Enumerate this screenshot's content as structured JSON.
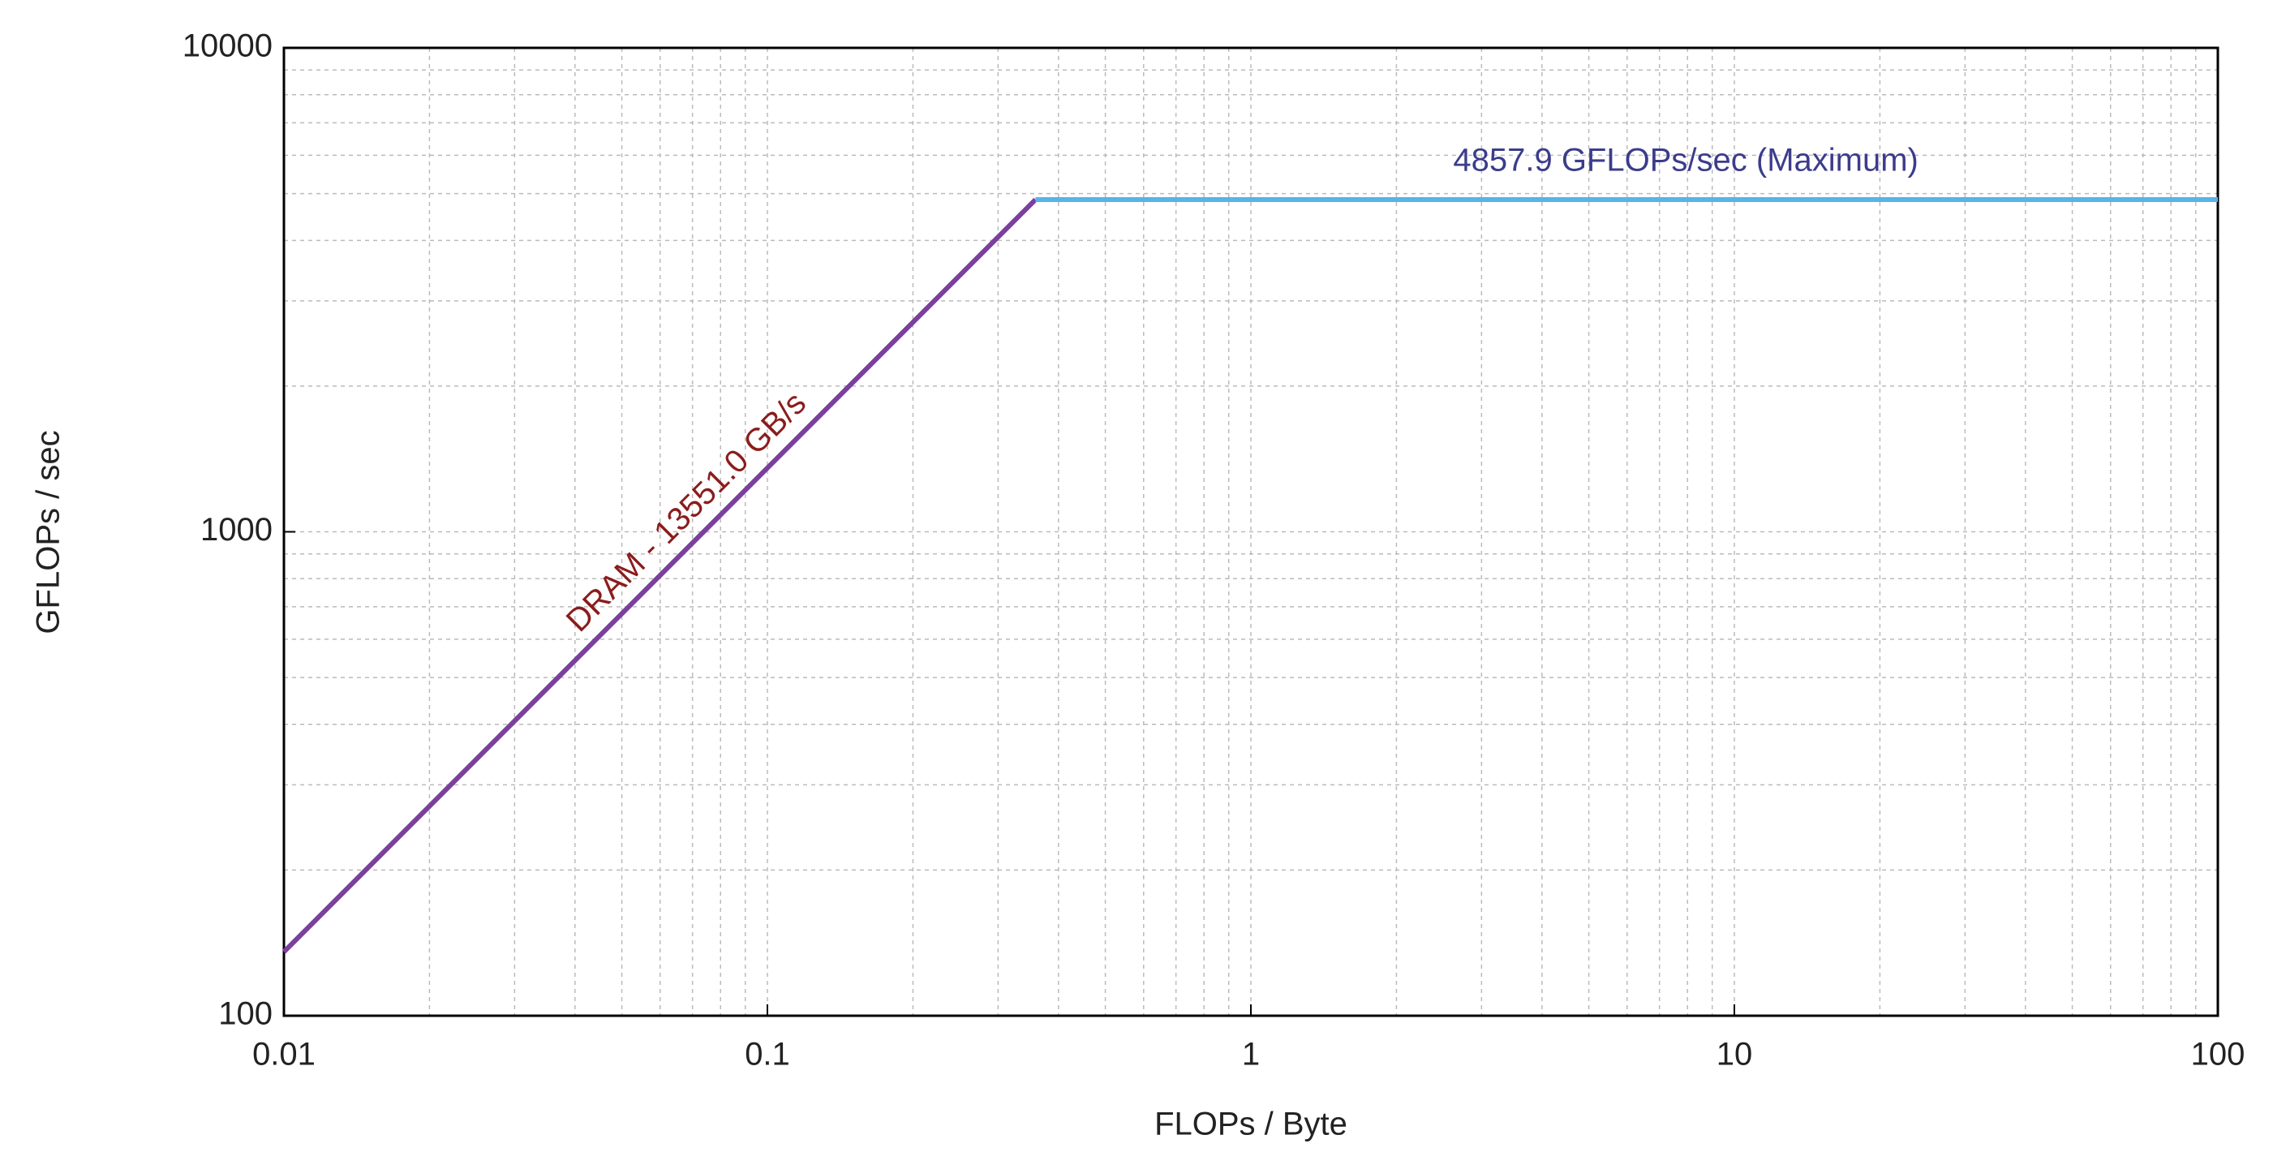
{
  "chart_data": {
    "type": "line",
    "xlabel": "FLOPs / Byte",
    "ylabel": "GFLOPs / sec",
    "xscale": "log",
    "yscale": "log",
    "grid": true,
    "xlim": [
      0.01,
      100
    ],
    "ylim": [
      100,
      10000
    ],
    "xticks": [
      0.01,
      0.1,
      1,
      10,
      100
    ],
    "yticks": [
      100,
      1000,
      10000
    ],
    "series": [
      {
        "color": "#7b3f9e",
        "x": [
          0.01,
          0.3585
        ],
        "values": [
          135.51,
          4857.9
        ]
      },
      {
        "color": "#56b4e9",
        "x": [
          0.3585,
          100
        ],
        "values": [
          4857.9,
          4857.9
        ]
      }
    ],
    "annotations": [
      {
        "text": "DRAM - 13551.0 GB/s",
        "color": "#8b1c1c"
      },
      {
        "text": "4857.9 GFLOPs/sec (Maximum)",
        "color": "#3c3c8c"
      }
    ]
  }
}
